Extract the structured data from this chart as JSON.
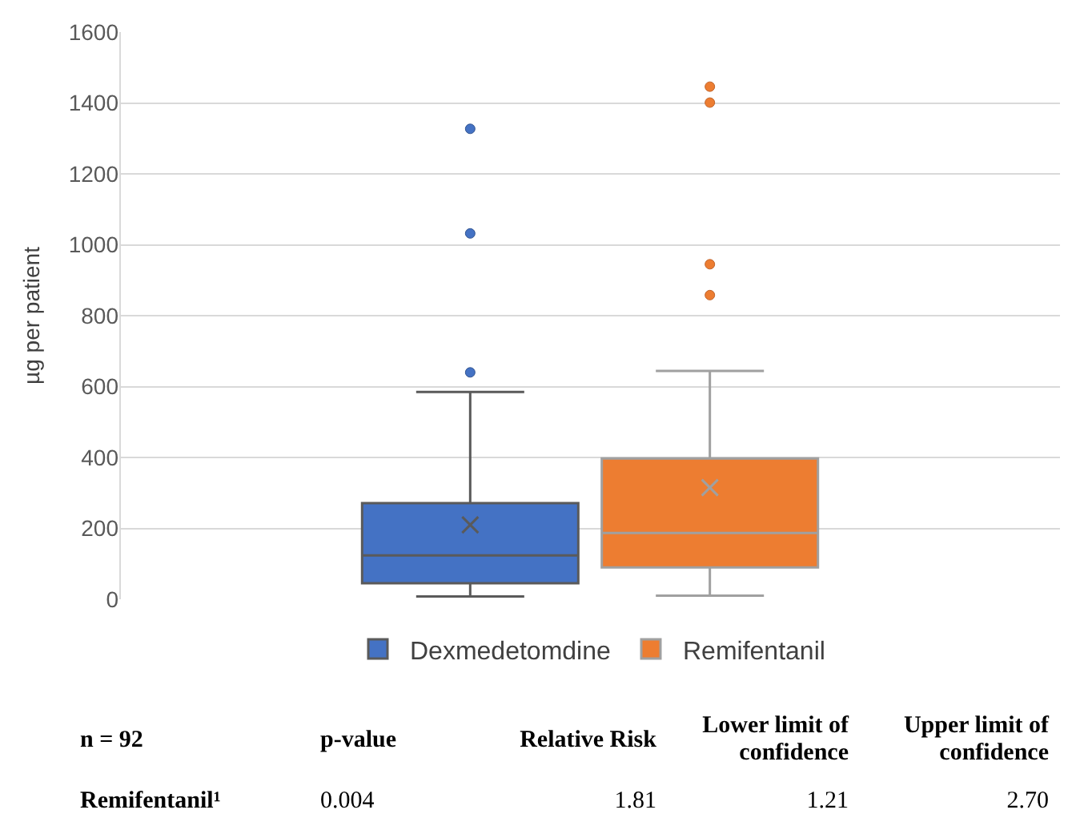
{
  "chart_data": {
    "type": "box",
    "ylabel": "µg per patient",
    "categories": [
      null
    ],
    "series": [
      {
        "name": "Dexmedetomdine",
        "color": "#4472c4",
        "boxes": [
          {
            "low": 8,
            "q1": 45,
            "median": 124,
            "q3": 271,
            "high": 585,
            "mean": 210,
            "outliers": [
              640,
              1032,
              1327
            ]
          }
        ]
      },
      {
        "name": "Remifentanil",
        "color": "#ed7d31",
        "boxes": [
          {
            "low": 10,
            "q1": 90,
            "median": 187,
            "q3": 397,
            "high": 644,
            "mean": 315,
            "outliers": [
              858,
              945,
              1401,
              1446
            ]
          }
        ]
      }
    ],
    "ylim": [
      0,
      1600
    ],
    "yticks": [
      0,
      200,
      400,
      600,
      800,
      1000,
      1200,
      1400,
      1600
    ],
    "grid": "y",
    "legend": "bottom",
    "annotations": [
      "n = 92",
      "p-value",
      "Relative Risk",
      "Lower limit of confidence",
      "Upper limit of confidence",
      "Remifentanil¹",
      "0.004",
      "1.81",
      "1.21",
      "2.70"
    ]
  }
}
